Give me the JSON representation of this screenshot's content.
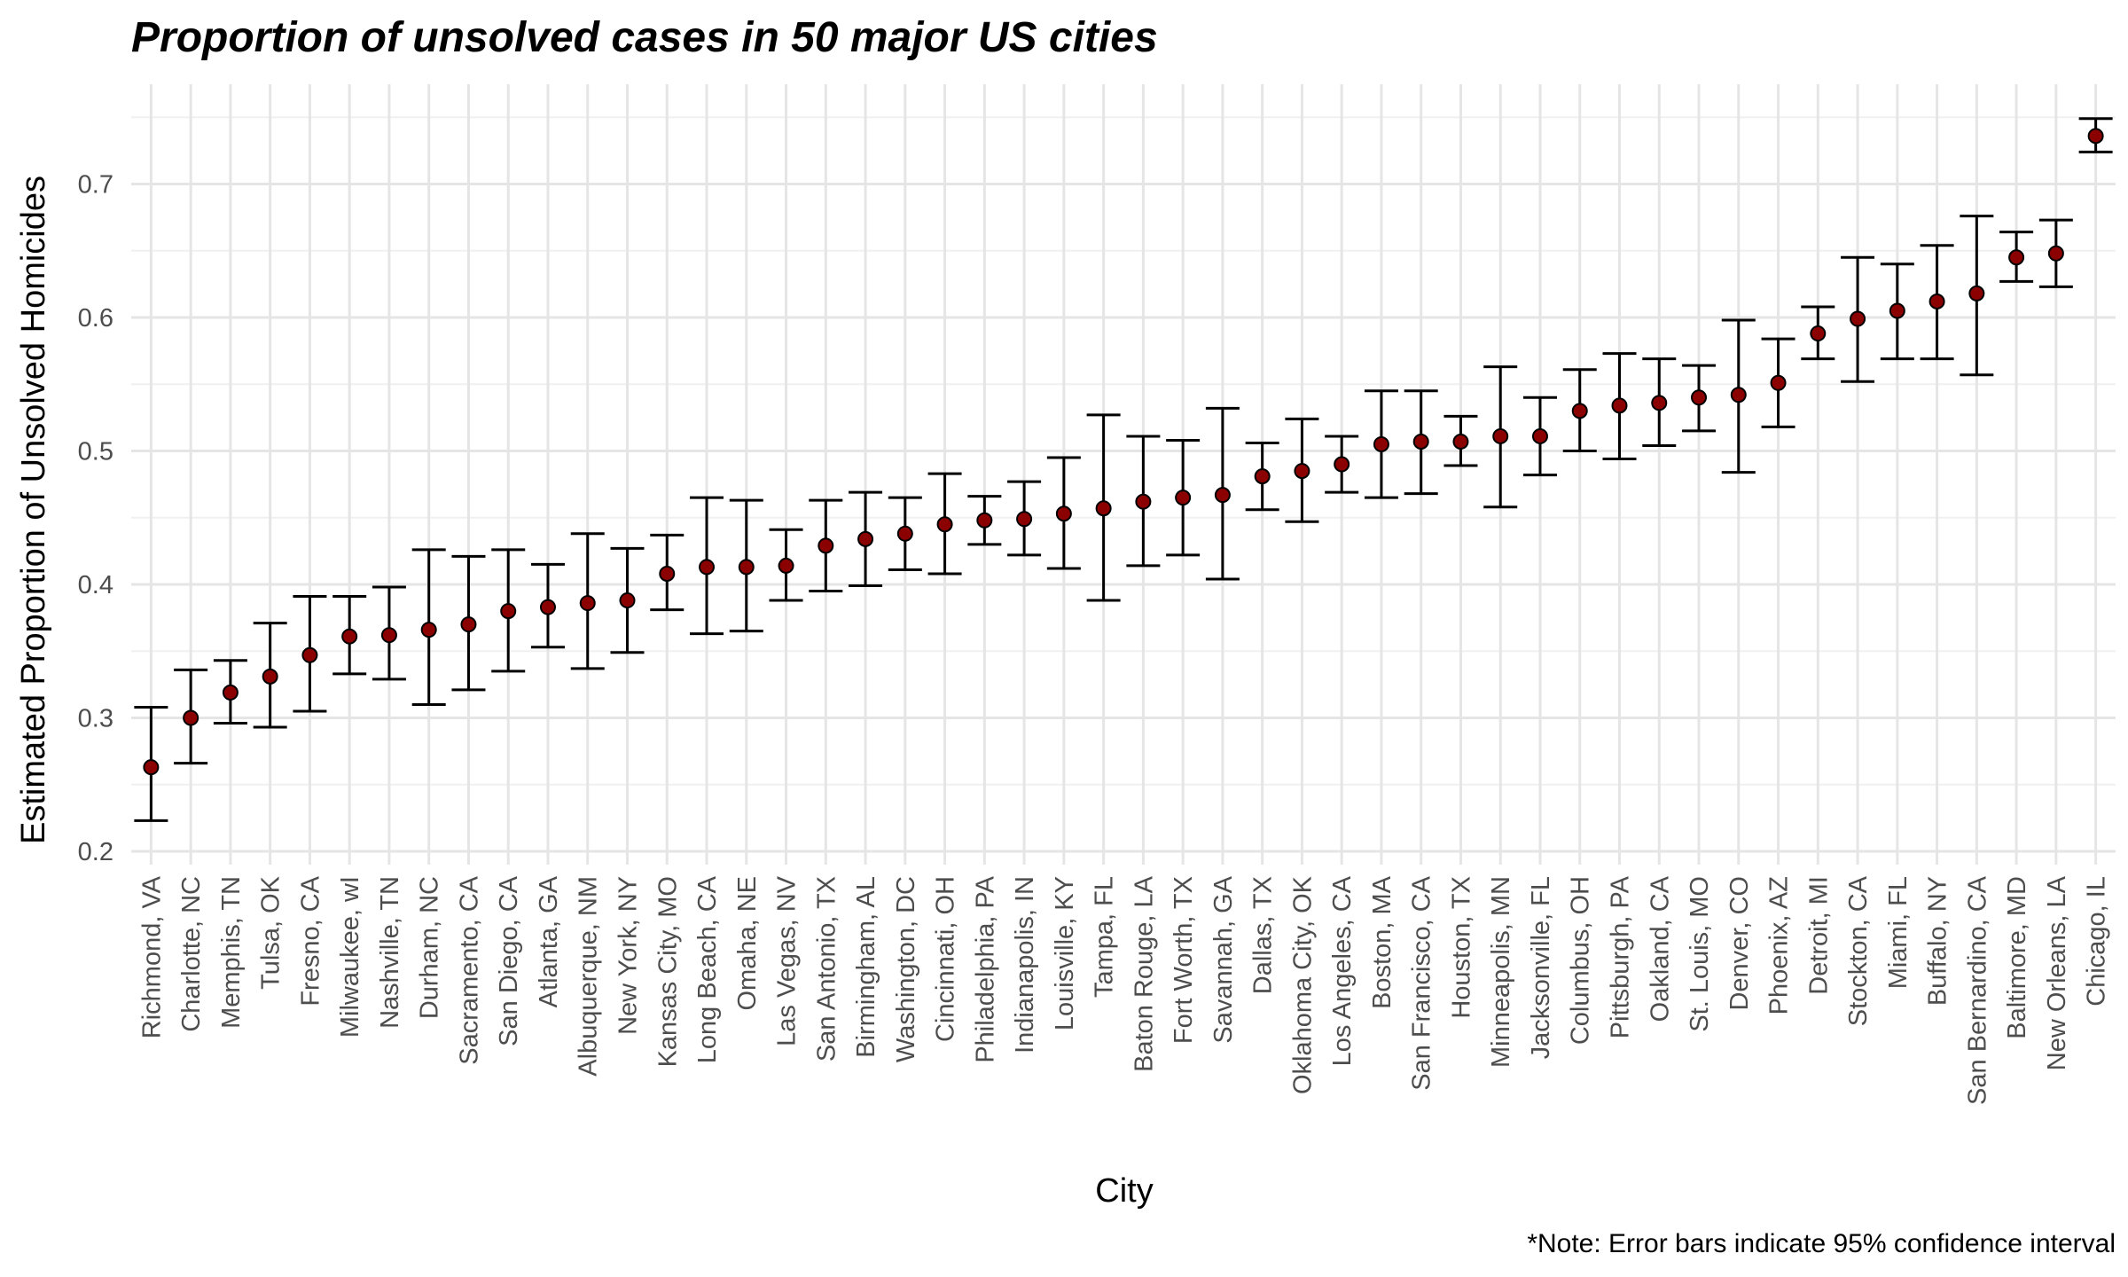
{
  "chart_data": {
    "type": "scatter",
    "title": "Proportion of unsolved cases in 50 major US cities",
    "xlabel": "City",
    "ylabel": "Estimated Proportion of Unsolved Homicides",
    "caption": "*Note: Error bars indicate 95% confidence interval",
    "ylim": [
      0.2,
      0.76
    ],
    "yticks": [
      0.2,
      0.3,
      0.4,
      0.5,
      0.6,
      0.7
    ],
    "ytick_labels": [
      "0.2",
      "0.3",
      "0.4",
      "0.5",
      "0.6",
      "0.7"
    ],
    "grid": true,
    "point_color": "#8b0000",
    "errorbar_color": "#000000",
    "categories": [
      "Richmond, VA",
      "Charlotte, NC",
      "Memphis, TN",
      "Tulsa, OK",
      "Fresno, CA",
      "Milwaukee, wI",
      "Nashville, TN",
      "Durham, NC",
      "Sacramento, CA",
      "San Diego, CA",
      "Atlanta, GA",
      "Albuquerque, NM",
      "New York, NY",
      "Kansas City, MO",
      "Long Beach, CA",
      "Omaha, NE",
      "Las Vegas, NV",
      "San Antonio, TX",
      "Birmingham, AL",
      "Washington, DC",
      "Cincinnati, OH",
      "Philadelphia, PA",
      "Indianapolis, IN",
      "Louisville, KY",
      "Tampa, FL",
      "Baton Rouge, LA",
      "Fort Worth, TX",
      "Savannah, GA",
      "Dallas, TX",
      "Oklahoma City, OK",
      "Los Angeles, CA",
      "Boston, MA",
      "San Francisco, CA",
      "Houston, TX",
      "Minneapolis, MN",
      "Jacksonville, FL",
      "Columbus, OH",
      "Pittsburgh, PA",
      "Oakland, CA",
      "St. Louis, MO",
      "Denver, CO",
      "Phoenix, AZ",
      "Detroit, MI",
      "Stockton, CA",
      "Miami, FL",
      "Buffalo, NY",
      "San Bernardino, CA",
      "Baltimore, MD",
      "New Orleans, LA",
      "Chicago, IL"
    ],
    "values": [
      0.263,
      0.3,
      0.319,
      0.331,
      0.347,
      0.361,
      0.362,
      0.366,
      0.37,
      0.38,
      0.383,
      0.386,
      0.388,
      0.408,
      0.413,
      0.413,
      0.414,
      0.429,
      0.434,
      0.438,
      0.445,
      0.448,
      0.449,
      0.453,
      0.457,
      0.462,
      0.465,
      0.467,
      0.481,
      0.485,
      0.49,
      0.505,
      0.507,
      0.507,
      0.511,
      0.511,
      0.53,
      0.534,
      0.536,
      0.54,
      0.542,
      0.551,
      0.588,
      0.599,
      0.605,
      0.612,
      0.618,
      0.645,
      0.648,
      0.736
    ],
    "ci_low": [
      0.223,
      0.266,
      0.296,
      0.293,
      0.305,
      0.333,
      0.329,
      0.31,
      0.321,
      0.335,
      0.353,
      0.337,
      0.349,
      0.381,
      0.363,
      0.365,
      0.388,
      0.395,
      0.399,
      0.411,
      0.408,
      0.43,
      0.422,
      0.412,
      0.388,
      0.414,
      0.422,
      0.404,
      0.456,
      0.447,
      0.469,
      0.465,
      0.468,
      0.489,
      0.458,
      0.482,
      0.5,
      0.494,
      0.504,
      0.515,
      0.484,
      0.518,
      0.569,
      0.552,
      0.569,
      0.569,
      0.557,
      0.627,
      0.623,
      0.724
    ],
    "ci_high": [
      0.308,
      0.336,
      0.343,
      0.371,
      0.391,
      0.391,
      0.398,
      0.426,
      0.421,
      0.426,
      0.415,
      0.438,
      0.427,
      0.437,
      0.465,
      0.463,
      0.441,
      0.463,
      0.469,
      0.465,
      0.483,
      0.466,
      0.477,
      0.495,
      0.527,
      0.511,
      0.508,
      0.532,
      0.506,
      0.524,
      0.511,
      0.545,
      0.545,
      0.526,
      0.563,
      0.54,
      0.561,
      0.573,
      0.569,
      0.564,
      0.598,
      0.584,
      0.608,
      0.645,
      0.64,
      0.654,
      0.676,
      0.664,
      0.673,
      0.749
    ]
  }
}
